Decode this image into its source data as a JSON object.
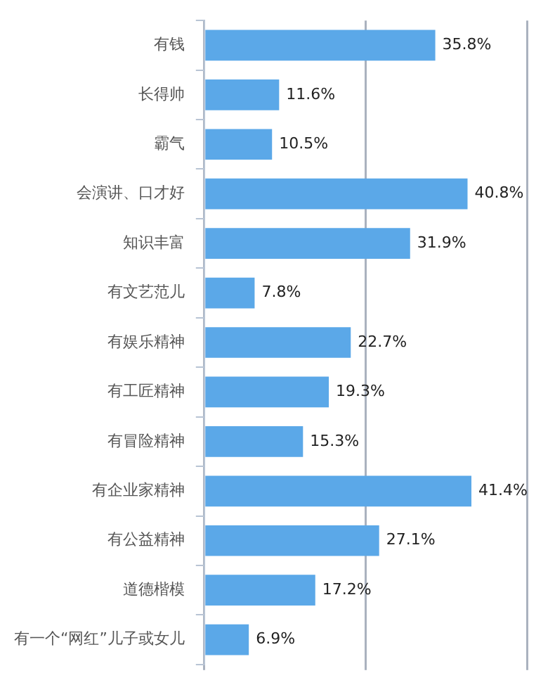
{
  "chart_data": {
    "type": "bar",
    "orientation": "horizontal",
    "categories": [
      "有钱",
      "长得帅",
      "霸气",
      "会演讲、口才好",
      "知识丰富",
      "有文艺范儿",
      "有娱乐精神",
      "有工匠精神",
      "有冒险精神",
      "有企业家精神",
      "有公益精神",
      "道德楷模",
      "有一个“网红”儿子或女儿"
    ],
    "values": [
      35.8,
      11.6,
      10.5,
      40.8,
      31.9,
      7.8,
      22.7,
      19.3,
      15.3,
      41.4,
      27.1,
      17.2,
      6.9
    ],
    "value_labels": [
      "35.8%",
      "11.6%",
      "10.5%",
      "40.8%",
      "31.9%",
      "7.8%",
      "22.7%",
      "19.3%",
      "15.3%",
      "41.4%",
      "27.1%",
      "17.2%",
      "6.9%"
    ],
    "color": "#5ba8e8",
    "xlim": [
      0,
      50
    ],
    "xticks": [
      {
        "value": 0,
        "label": null
      },
      {
        "value": 25,
        "label": null
      },
      {
        "value": 50,
        "label": null
      }
    ],
    "grid": "x",
    "tick_labels": "y",
    "legend": false
  }
}
